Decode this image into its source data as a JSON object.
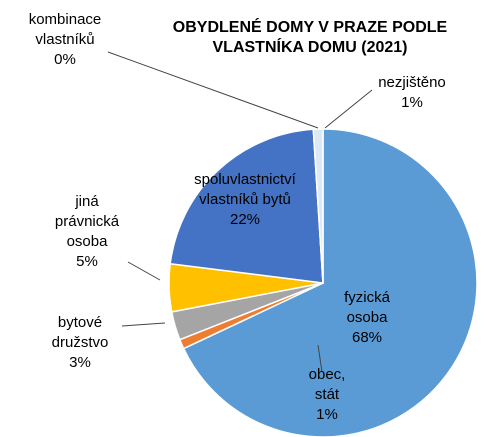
{
  "chart_data": {
    "type": "pie",
    "title": "OBYDLENÉ DOMY V PRAZE PODLE VLASTNÍKA DOMU (2021)",
    "categories": [
      "fyzická osoba",
      "obec, stát",
      "bytové družstvo",
      "jiná právnická osoba",
      "spoluvlastnictví vlastníků bytů",
      "kombinace vlastníků",
      "nezjištěno"
    ],
    "values": [
      68,
      1,
      3,
      5,
      22,
      0,
      1
    ],
    "value_labels": [
      "68%",
      "1%",
      "3%",
      "5%",
      "22%",
      "0%",
      "1%"
    ],
    "colors": [
      "#5b9bd5",
      "#ed7d31",
      "#a5a5a5",
      "#ffc000",
      "#4472c4",
      "#70ad47",
      "#dde8f5"
    ]
  }
}
